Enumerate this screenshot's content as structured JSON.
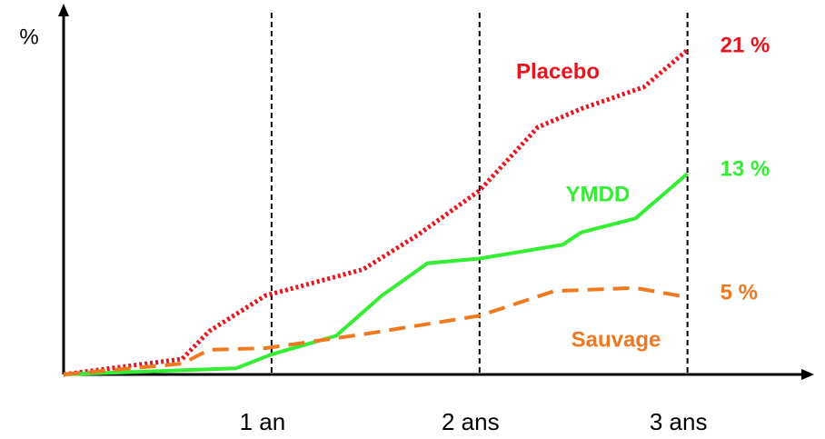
{
  "chart_data": {
    "type": "line",
    "ylabel": "%",
    "xlim": [
      0,
      3.6
    ],
    "ylim": [
      0,
      24
    ],
    "xticks": [
      {
        "value": 1,
        "label": "1 an"
      },
      {
        "value": 2,
        "label": "2 ans"
      },
      {
        "value": 3,
        "label": "3 ans"
      }
    ],
    "series": [
      {
        "name": "Placebo",
        "color": "#e8141e",
        "style": "dotted",
        "x": [
          0,
          0.57,
          0.7,
          0.97,
          1.44,
          1.7,
          2.0,
          2.28,
          2.49,
          2.79,
          3.0
        ],
        "values": [
          0,
          1.0,
          2.8,
          5.1,
          6.8,
          9.0,
          11.9,
          16.0,
          17.2,
          18.6,
          21
        ],
        "value_labels": [
          null,
          null,
          null,
          null,
          null,
          null,
          null,
          null,
          null,
          null,
          "21 %"
        ]
      },
      {
        "name": "YMDD",
        "color": "#33ee33",
        "style": "solid",
        "x": [
          0,
          0.83,
          1.0,
          1.31,
          1.53,
          1.75,
          2.0,
          2.4,
          2.49,
          2.75,
          3.0
        ],
        "values": [
          0,
          0.4,
          1.3,
          2.5,
          5.1,
          7.2,
          7.5,
          8.4,
          9.2,
          10.1,
          13
        ],
        "value_labels": [
          null,
          null,
          null,
          null,
          null,
          null,
          null,
          null,
          null,
          null,
          "13 %"
        ]
      },
      {
        "name": "Sauvage",
        "color": "#f07820",
        "style": "dashed",
        "x": [
          0,
          0.57,
          0.7,
          0.97,
          1.44,
          2.0,
          2.36,
          2.75,
          3.0
        ],
        "values": [
          0,
          0.7,
          1.6,
          1.7,
          2.6,
          3.8,
          5.4,
          5.6,
          5
        ],
        "value_labels": [
          null,
          null,
          null,
          null,
          null,
          null,
          null,
          null,
          "5 %"
        ]
      }
    ]
  }
}
